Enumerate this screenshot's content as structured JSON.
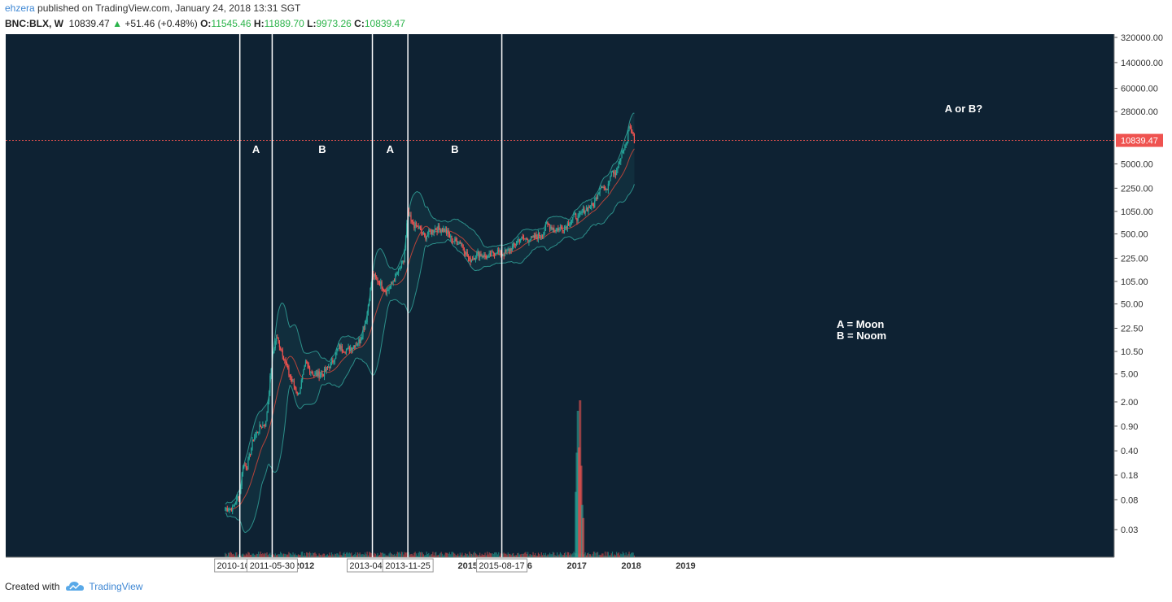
{
  "header": {
    "user": "ehzera",
    "published_text": "published on TradingView.com, January 24, 2018 13:31 SGT",
    "symbol": "BNC:BLX, W",
    "last": "10839.47",
    "change": "+51.46 (+0.48%)",
    "open_label": "O:",
    "open": "11545.46",
    "high_label": "H:",
    "high": "11889.70",
    "low_label": "L:",
    "low": "9973.26",
    "close_label": "C:",
    "close": "10839.47"
  },
  "footer": {
    "created_with": "Created with",
    "brand": "TradingView"
  },
  "colors": {
    "background": "#0e2233",
    "up": "#26a69a",
    "down": "#ef5350",
    "band": "#2c8f8a",
    "last_price": "#ef5350",
    "marker_line": "#ffffff"
  },
  "chart_data": {
    "type": "candlestick",
    "scale": "log",
    "y_ticks": [
      "320000.00",
      "140000.00",
      "60000.00",
      "28000.00",
      "5000.00",
      "2250.00",
      "1050.00",
      "500.00",
      "225.00",
      "105.00",
      "50.00",
      "22.50",
      "10.50",
      "5.00",
      "2.00",
      "0.90",
      "0.40",
      "0.18",
      "0.08",
      "0.03"
    ],
    "x_ticks": [
      "2012",
      "2015",
      "2016",
      "2017",
      "2018",
      "2019"
    ],
    "partial_ticks": [
      "1",
      "20"
    ],
    "marker_dates": [
      "2010-10-25",
      "2011-05-30",
      "2013-04-01",
      "2013-11-25",
      "2015-08-17"
    ],
    "phase_labels": [
      "A",
      "B",
      "A",
      "B"
    ],
    "question_label": "A or B?",
    "legend_lines": [
      "A = Moon",
      "B = Noom"
    ],
    "last_price_label": "10839.47",
    "price_path": [
      [
        "2010-07-19",
        0.06
      ],
      [
        "2010-09-06",
        0.06
      ],
      [
        "2010-10-25",
        0.1
      ],
      [
        "2010-11-15",
        0.25
      ],
      [
        "2010-12-13",
        0.24
      ],
      [
        "2011-01-24",
        0.6
      ],
      [
        "2011-03-07",
        0.86
      ],
      [
        "2011-04-18",
        1.0
      ],
      [
        "2011-05-30",
        9.0
      ],
      [
        "2011-06-27",
        17.0
      ],
      [
        "2011-08-08",
        10.0
      ],
      [
        "2011-09-19",
        5.0
      ],
      [
        "2011-11-21",
        2.5
      ],
      [
        "2012-01-09",
        7.0
      ],
      [
        "2012-03-05",
        4.9
      ],
      [
        "2012-05-07",
        5.1
      ],
      [
        "2012-07-02",
        7.2
      ],
      [
        "2012-08-20",
        12.0
      ],
      [
        "2012-10-15",
        11.0
      ],
      [
        "2013-01-07",
        15.0
      ],
      [
        "2013-02-18",
        30.0
      ],
      [
        "2013-04-01",
        130.0
      ],
      [
        "2013-05-06",
        110.0
      ],
      [
        "2013-07-08",
        75.0
      ],
      [
        "2013-09-09",
        130.0
      ],
      [
        "2013-10-28",
        200.0
      ],
      [
        "2013-11-25",
        1000.0
      ],
      [
        "2013-12-23",
        700.0
      ],
      [
        "2014-02-10",
        600.0
      ],
      [
        "2014-03-17",
        450.0
      ],
      [
        "2014-05-26",
        600.0
      ],
      [
        "2014-07-28",
        580.0
      ],
      [
        "2014-09-22",
        400.0
      ],
      [
        "2014-11-17",
        380.0
      ],
      [
        "2015-01-12",
        210.0
      ],
      [
        "2015-03-09",
        260.0
      ],
      [
        "2015-05-18",
        235.0
      ],
      [
        "2015-07-13",
        290.0
      ],
      [
        "2015-08-17",
        250.0
      ],
      [
        "2015-10-26",
        320.0
      ],
      [
        "2015-12-14",
        430.0
      ],
      [
        "2016-02-29",
        420.0
      ],
      [
        "2016-05-23",
        520.0
      ],
      [
        "2016-06-13",
        700.0
      ],
      [
        "2016-08-08",
        580.0
      ],
      [
        "2016-10-17",
        640.0
      ],
      [
        "2016-12-19",
        900.0
      ],
      [
        "2017-01-09",
        850.0
      ],
      [
        "2017-02-20",
        1100.0
      ],
      [
        "2017-04-24",
        1300.0
      ],
      [
        "2017-06-12",
        2600.0
      ],
      [
        "2017-07-17",
        2000.0
      ],
      [
        "2017-08-21",
        4200.0
      ],
      [
        "2017-09-18",
        3800.0
      ],
      [
        "2017-10-23",
        6000.0
      ],
      [
        "2017-12-04",
        11000.0
      ],
      [
        "2017-12-18",
        18000.0
      ],
      [
        "2018-01-08",
        14000.0
      ],
      [
        "2018-01-22",
        10839.47
      ]
    ],
    "volume_spikes": [
      [
        "2016-12-26",
        0.25
      ],
      [
        "2017-01-02",
        0.4
      ],
      [
        "2017-01-09",
        0.56
      ],
      [
        "2017-01-16",
        0.42
      ],
      [
        "2017-01-23",
        0.6
      ],
      [
        "2017-01-30",
        0.35
      ],
      [
        "2017-02-06",
        0.2
      ],
      [
        "2017-02-13",
        0.15
      ]
    ]
  }
}
